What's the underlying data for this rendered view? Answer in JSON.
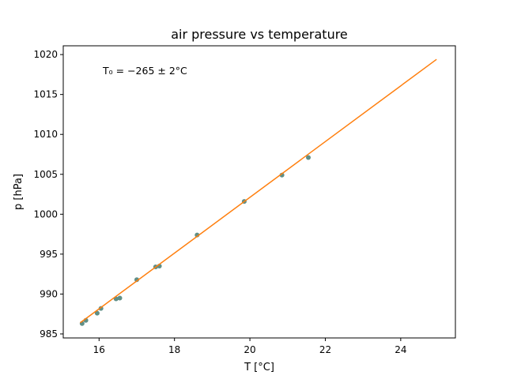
{
  "chart_data": {
    "type": "scatter",
    "title": "air pressure vs temperature",
    "xlabel": "T [°C]",
    "ylabel": "p [hPa]",
    "xlim": [
      15.05,
      25.45
    ],
    "ylim": [
      984.5,
      1021.1
    ],
    "x_ticks": [
      16,
      18,
      20,
      22,
      24
    ],
    "y_ticks": [
      985,
      990,
      995,
      1000,
      1005,
      1010,
      1015,
      1020
    ],
    "grid": false,
    "annotation": "T₀ = −265 ± 2°C",
    "series": [
      {
        "kind": "scatter",
        "color": "#5f8f87",
        "x": [
          15.55,
          15.65,
          15.95,
          16.05,
          16.45,
          16.55,
          17.0,
          17.5,
          17.6,
          18.6,
          19.85,
          20.85,
          21.55
        ],
        "y": [
          986.3,
          986.7,
          987.6,
          988.2,
          989.4,
          989.5,
          991.8,
          993.4,
          993.5,
          997.4,
          1001.6,
          1004.9,
          1007.1
        ]
      },
      {
        "kind": "line",
        "color": "#ff7f0e",
        "x": [
          15.5,
          24.95
        ],
        "y": [
          986.4,
          1019.4
        ]
      }
    ]
  }
}
